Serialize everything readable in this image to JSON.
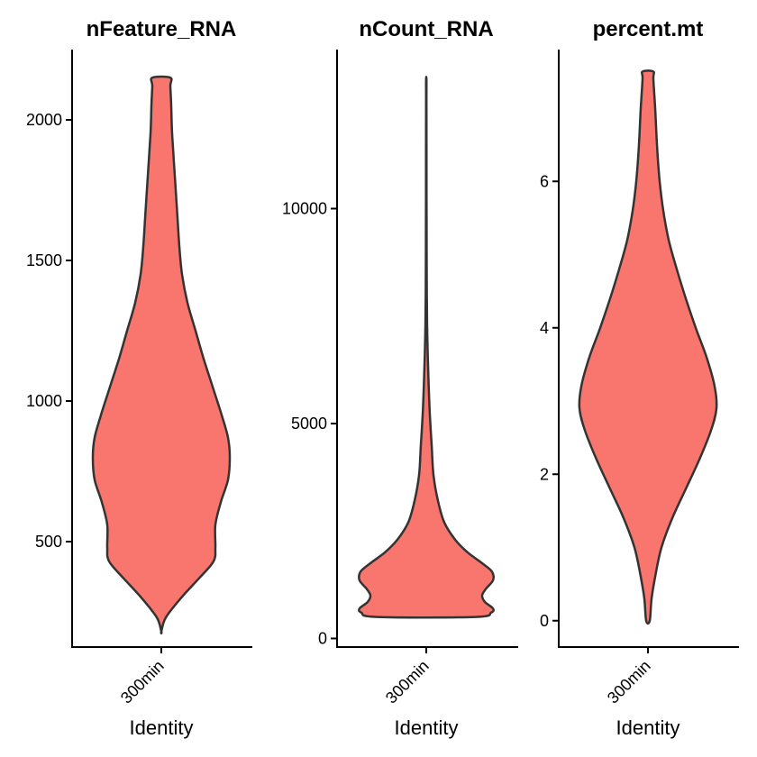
{
  "colors": {
    "fill": "#F8766D",
    "outline": "#333333",
    "axis": "#000000"
  },
  "chart_data": [
    {
      "type": "violin",
      "title": "nFeature_RNA",
      "xlabel": "Identity",
      "categories": [
        "300min"
      ],
      "ylim": [
        125,
        2250
      ],
      "yticks": [
        500,
        1000,
        1500,
        2000
      ],
      "profile": [
        {
          "y": 180,
          "w": 0.0
        },
        {
          "y": 230,
          "w": 0.05
        },
        {
          "y": 300,
          "w": 0.22
        },
        {
          "y": 370,
          "w": 0.42
        },
        {
          "y": 430,
          "w": 0.58
        },
        {
          "y": 480,
          "w": 0.6
        },
        {
          "y": 560,
          "w": 0.6
        },
        {
          "y": 640,
          "w": 0.66
        },
        {
          "y": 720,
          "w": 0.74
        },
        {
          "y": 800,
          "w": 0.76
        },
        {
          "y": 870,
          "w": 0.74
        },
        {
          "y": 950,
          "w": 0.67
        },
        {
          "y": 1050,
          "w": 0.57
        },
        {
          "y": 1150,
          "w": 0.47
        },
        {
          "y": 1250,
          "w": 0.38
        },
        {
          "y": 1350,
          "w": 0.29
        },
        {
          "y": 1450,
          "w": 0.23
        },
        {
          "y": 1550,
          "w": 0.2
        },
        {
          "y": 1650,
          "w": 0.18
        },
        {
          "y": 1800,
          "w": 0.15
        },
        {
          "y": 1950,
          "w": 0.12
        },
        {
          "y": 2050,
          "w": 0.11
        },
        {
          "y": 2120,
          "w": 0.1
        },
        {
          "y": 2150,
          "w": 0.1
        }
      ]
    },
    {
      "type": "violin",
      "title": "nCount_RNA",
      "xlabel": "Identity",
      "categories": [
        "300min"
      ],
      "ylim": [
        -200,
        13700
      ],
      "yticks": [
        0,
        5000,
        10000
      ],
      "profile": [
        {
          "y": 500,
          "w": 0.55
        },
        {
          "y": 600,
          "w": 0.72
        },
        {
          "y": 700,
          "w": 0.74
        },
        {
          "y": 850,
          "w": 0.65
        },
        {
          "y": 1000,
          "w": 0.62
        },
        {
          "y": 1150,
          "w": 0.66
        },
        {
          "y": 1350,
          "w": 0.74
        },
        {
          "y": 1550,
          "w": 0.73
        },
        {
          "y": 1750,
          "w": 0.62
        },
        {
          "y": 2000,
          "w": 0.46
        },
        {
          "y": 2300,
          "w": 0.32
        },
        {
          "y": 2700,
          "w": 0.2
        },
        {
          "y": 3200,
          "w": 0.13
        },
        {
          "y": 3800,
          "w": 0.08
        },
        {
          "y": 4500,
          "w": 0.06
        },
        {
          "y": 5200,
          "w": 0.04
        },
        {
          "y": 6000,
          "w": 0.025
        },
        {
          "y": 7000,
          "w": 0.012
        },
        {
          "y": 8000,
          "w": 0.006
        },
        {
          "y": 9500,
          "w": 0.004
        },
        {
          "y": 11000,
          "w": 0.003
        },
        {
          "y": 12500,
          "w": 0.002
        },
        {
          "y": 13000,
          "w": 0.002
        }
      ]
    },
    {
      "type": "violin",
      "title": "percent.mt",
      "xlabel": "Identity",
      "categories": [
        "300min"
      ],
      "ylim": [
        -0.36,
        7.8
      ],
      "yticks": [
        0,
        2,
        4,
        6
      ],
      "profile": [
        {
          "y": 0.0,
          "w": 0.02
        },
        {
          "y": 0.3,
          "w": 0.04
        },
        {
          "y": 0.6,
          "w": 0.08
        },
        {
          "y": 1.0,
          "w": 0.15
        },
        {
          "y": 1.4,
          "w": 0.27
        },
        {
          "y": 1.8,
          "w": 0.42
        },
        {
          "y": 2.2,
          "w": 0.57
        },
        {
          "y": 2.6,
          "w": 0.7
        },
        {
          "y": 2.9,
          "w": 0.76
        },
        {
          "y": 3.2,
          "w": 0.74
        },
        {
          "y": 3.6,
          "w": 0.65
        },
        {
          "y": 4.0,
          "w": 0.53
        },
        {
          "y": 4.4,
          "w": 0.42
        },
        {
          "y": 4.8,
          "w": 0.32
        },
        {
          "y": 5.2,
          "w": 0.23
        },
        {
          "y": 5.6,
          "w": 0.17
        },
        {
          "y": 6.0,
          "w": 0.13
        },
        {
          "y": 6.5,
          "w": 0.1
        },
        {
          "y": 7.0,
          "w": 0.08
        },
        {
          "y": 7.4,
          "w": 0.06
        },
        {
          "y": 7.5,
          "w": 0.06
        }
      ]
    }
  ]
}
